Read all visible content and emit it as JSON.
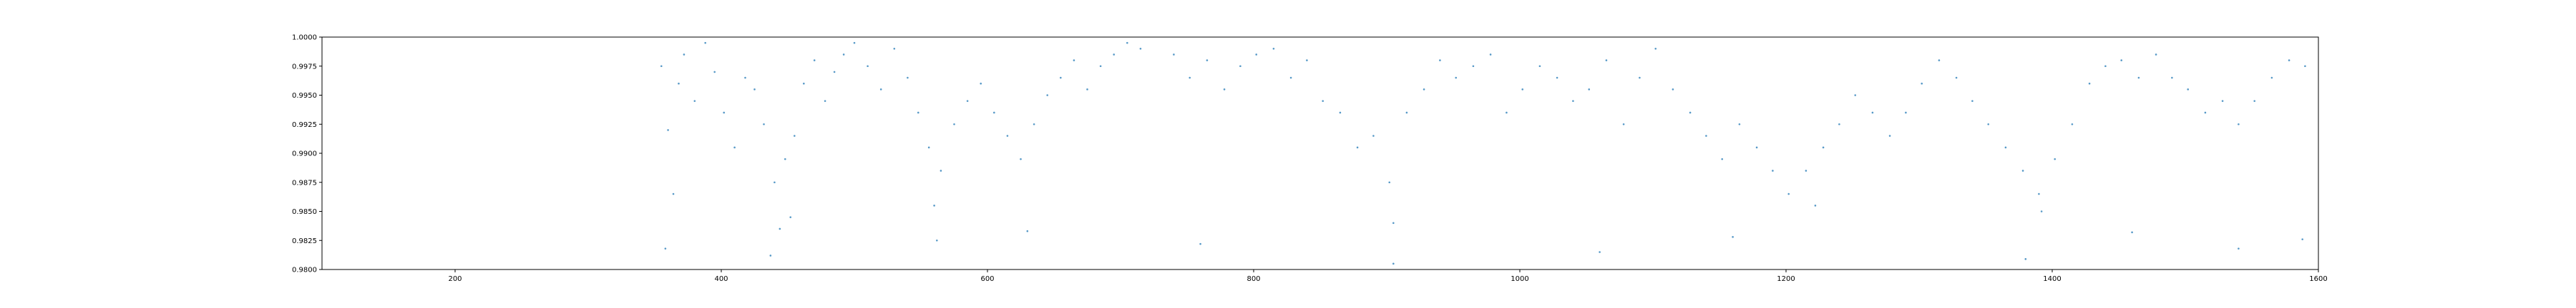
{
  "chart_data": {
    "type": "scatter",
    "title": "",
    "xlabel": "",
    "ylabel": "",
    "xlim": [
      100,
      1600
    ],
    "ylim": [
      0.98,
      1.0
    ],
    "x_ticks": [
      200,
      400,
      600,
      800,
      1000,
      1200,
      1400,
      1600
    ],
    "x_tick_labels": [
      "200",
      "400",
      "600",
      "800",
      "1000",
      "1200",
      "1400",
      "1600"
    ],
    "y_ticks": [
      0.98,
      0.9825,
      0.985,
      0.9875,
      0.99,
      0.9925,
      0.995,
      0.9975,
      1.0
    ],
    "y_tick_labels": [
      "0.9800",
      "0.9825",
      "0.9850",
      "0.9875",
      "0.9900",
      "0.9925",
      "0.9950",
      "0.9975",
      "1.0000"
    ],
    "grid": false,
    "legend": "none",
    "marker_color": "#1f77b4",
    "series": [
      {
        "x": [
          355,
          360,
          368,
          372,
          380,
          388,
          395,
          402,
          410,
          418,
          425,
          432,
          440,
          448,
          455,
          462,
          470,
          478,
          485,
          492,
          500,
          510,
          520,
          530,
          540,
          548,
          556,
          565,
          575,
          585,
          595,
          605,
          615,
          625,
          635,
          645,
          655,
          665,
          675,
          685,
          695,
          705,
          715,
          740,
          752,
          765,
          778,
          790,
          802,
          815,
          828,
          840,
          852,
          865,
          878,
          890,
          902,
          915,
          928,
          940,
          952,
          965,
          978,
          990,
          1002,
          1015,
          1028,
          1040,
          1052,
          1065,
          1078,
          1090,
          1102,
          1115,
          1128,
          1140,
          1152,
          1165,
          1178,
          1190,
          1202,
          1215,
          1228,
          1240,
          1252,
          1265,
          1278,
          1290,
          1302,
          1315,
          1328,
          1340,
          1352,
          1365,
          1378,
          1390,
          1402,
          1415,
          1428,
          1440,
          1452,
          1465,
          1478,
          1490,
          1502,
          1515,
          1528,
          1540,
          1552,
          1565,
          1578,
          1590,
          364,
          444,
          452,
          560,
          905,
          1222,
          1392,
          358,
          437,
          562,
          630,
          760,
          905,
          1060,
          1160,
          1380,
          1460,
          1540,
          1588
        ],
        "y": [
          0.9975,
          0.992,
          0.996,
          0.9985,
          0.9945,
          0.9995,
          0.997,
          0.9935,
          0.9905,
          0.9965,
          0.9955,
          0.9925,
          0.9875,
          0.9895,
          0.9915,
          0.996,
          0.998,
          0.9945,
          0.997,
          0.9985,
          0.9995,
          0.9975,
          0.9955,
          0.999,
          0.9965,
          0.9935,
          0.9905,
          0.9885,
          0.9925,
          0.9945,
          0.996,
          0.9935,
          0.9915,
          0.9895,
          0.9925,
          0.995,
          0.9965,
          0.998,
          0.9955,
          0.9975,
          0.9985,
          0.9995,
          0.999,
          0.9985,
          0.9965,
          0.998,
          0.9955,
          0.9975,
          0.9985,
          0.999,
          0.9965,
          0.998,
          0.9945,
          0.9935,
          0.9905,
          0.9915,
          0.9875,
          0.9935,
          0.9955,
          0.998,
          0.9965,
          0.9975,
          0.9985,
          0.9935,
          0.9955,
          0.9975,
          0.9965,
          0.9945,
          0.9955,
          0.998,
          0.9925,
          0.9965,
          0.999,
          0.9955,
          0.9935,
          0.9915,
          0.9895,
          0.9925,
          0.9905,
          0.9885,
          0.9865,
          0.9885,
          0.9905,
          0.9925,
          0.995,
          0.9935,
          0.9915,
          0.9935,
          0.996,
          0.998,
          0.9965,
          0.9945,
          0.9925,
          0.9905,
          0.9885,
          0.9865,
          0.9895,
          0.9925,
          0.996,
          0.9975,
          0.998,
          0.9965,
          0.9985,
          0.9965,
          0.9955,
          0.9935,
          0.9945,
          0.9925,
          0.9945,
          0.9965,
          0.998,
          0.9975,
          0.9865,
          0.9835,
          0.9845,
          0.9855,
          0.984,
          0.9855,
          0.985,
          0.9818,
          0.9812,
          0.9825,
          0.9833,
          0.9822,
          0.9805,
          0.9815,
          0.9828,
          0.9809,
          0.9832,
          0.9818,
          0.9826
        ]
      }
    ]
  }
}
